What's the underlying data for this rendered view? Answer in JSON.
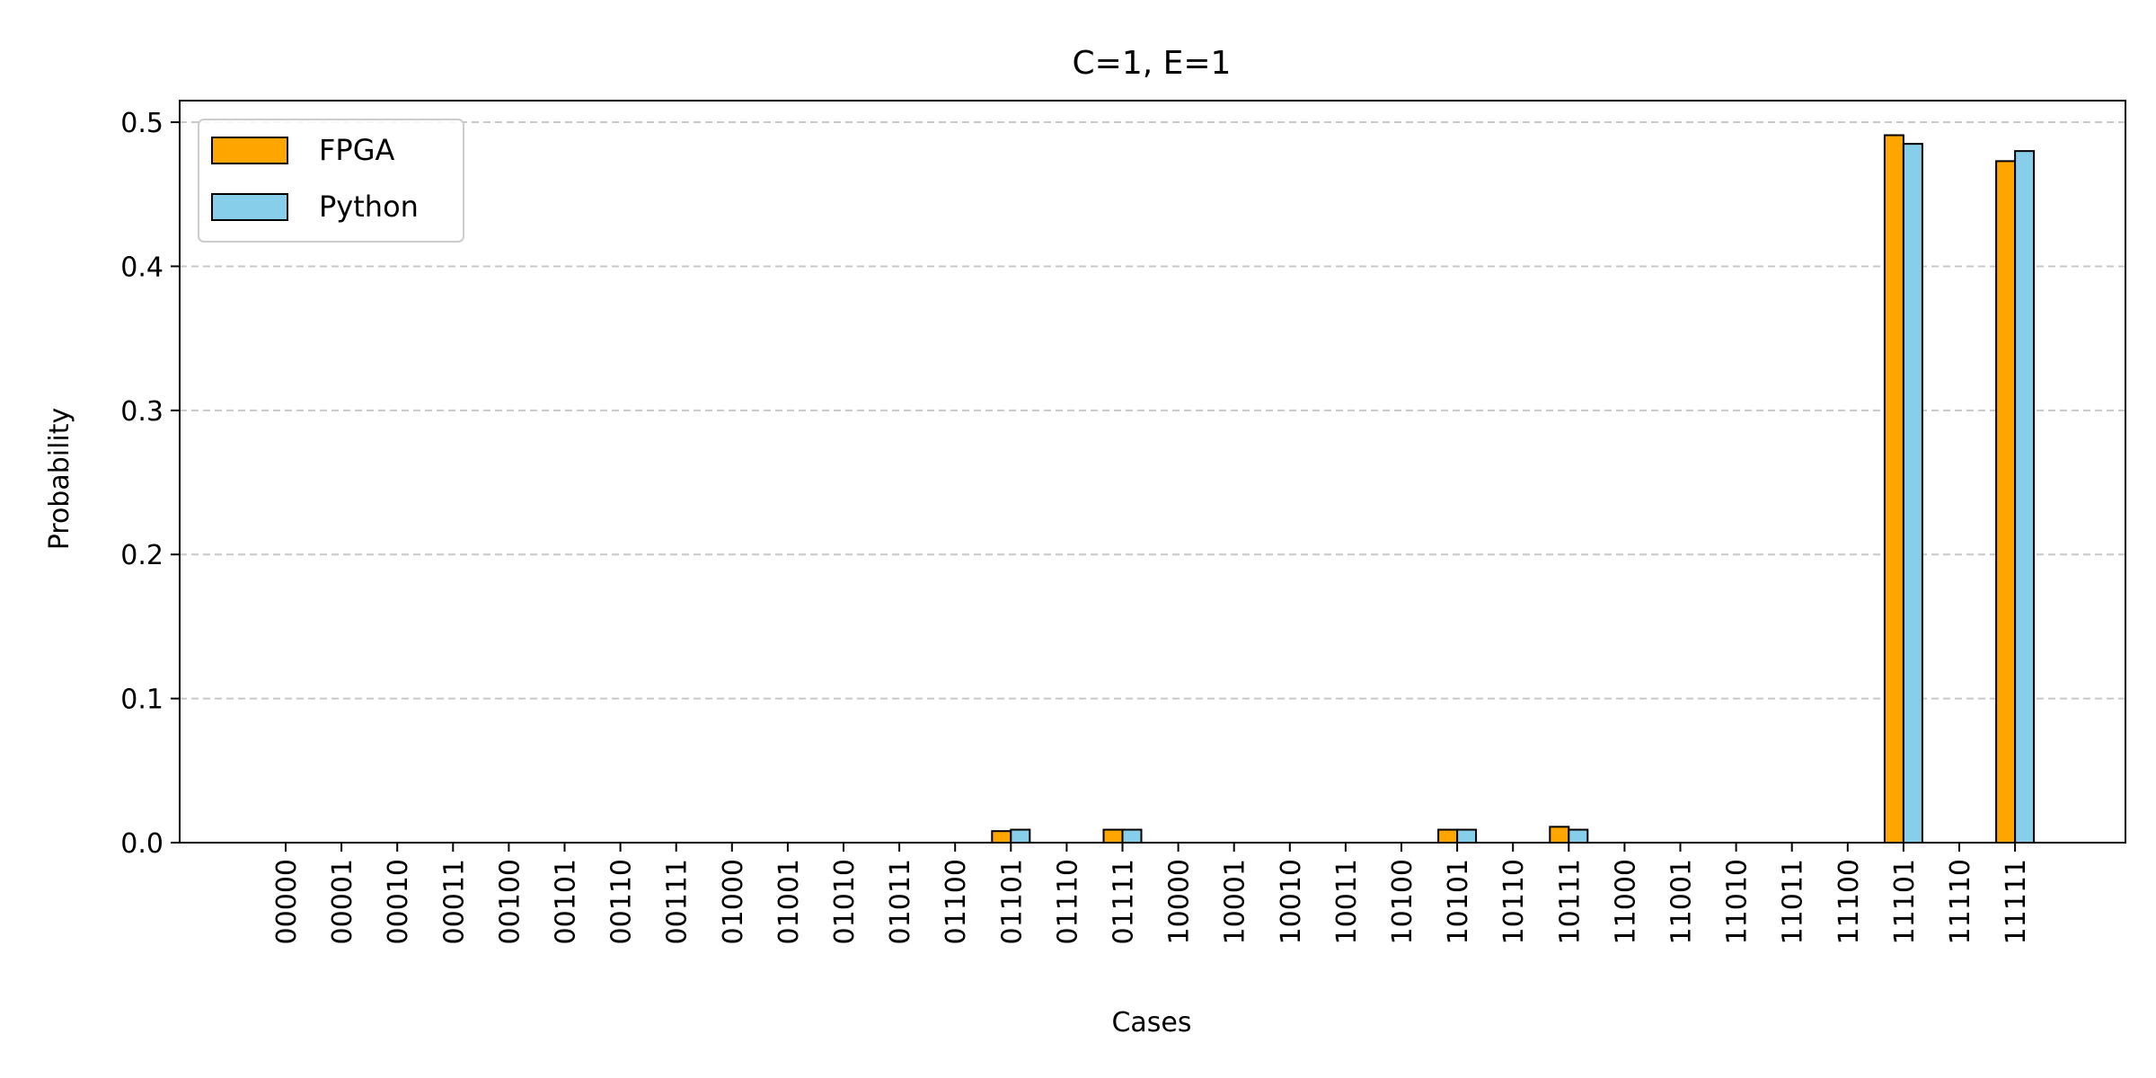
{
  "chart_data": {
    "type": "bar",
    "title": "C=1, E=1",
    "xlabel": "Cases",
    "ylabel": "Probability",
    "ylim": [
      0,
      0.515
    ],
    "yticks": [
      0.0,
      0.1,
      0.2,
      0.3,
      0.4,
      0.5
    ],
    "ytick_labels": [
      "0.0",
      "0.1",
      "0.2",
      "0.3",
      "0.4",
      "0.5"
    ],
    "grid": "y-dashed",
    "legend_position": "top-left",
    "categories": [
      "00000",
      "00001",
      "00010",
      "00011",
      "00100",
      "00101",
      "00110",
      "00111",
      "01000",
      "01001",
      "01010",
      "01011",
      "01100",
      "01101",
      "01110",
      "01111",
      "10000",
      "10001",
      "10010",
      "10011",
      "10100",
      "10101",
      "10110",
      "10111",
      "11000",
      "11001",
      "11010",
      "11011",
      "11100",
      "11101",
      "11110",
      "11111"
    ],
    "series": [
      {
        "name": "FPGA",
        "color": "#FFA500",
        "values": [
          0,
          0,
          0,
          0,
          0,
          0,
          0,
          0,
          0,
          0,
          0,
          0,
          0,
          0.008,
          0,
          0.009,
          0,
          0,
          0,
          0,
          0,
          0.009,
          0,
          0.011,
          0,
          0,
          0,
          0,
          0,
          0.491,
          0,
          0.473
        ]
      },
      {
        "name": "Python",
        "color": "#87CEEB",
        "values": [
          0,
          0,
          0,
          0,
          0,
          0,
          0,
          0,
          0,
          0,
          0,
          0,
          0,
          0.009,
          0,
          0.009,
          0,
          0,
          0,
          0,
          0,
          0.009,
          0,
          0.009,
          0,
          0,
          0,
          0,
          0,
          0.485,
          0,
          0.48
        ]
      }
    ]
  }
}
